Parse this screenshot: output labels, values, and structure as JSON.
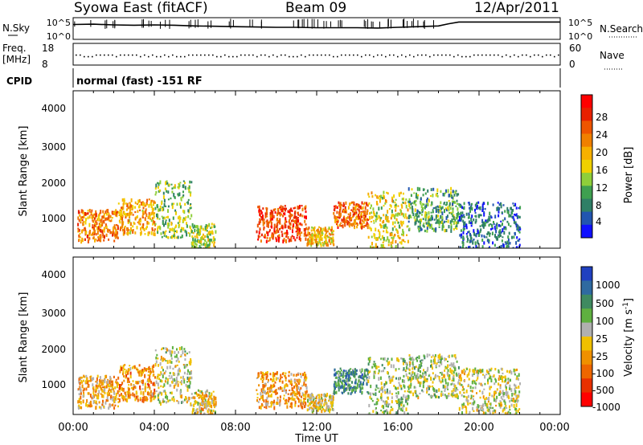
{
  "header": {
    "station": "Syowa East (fitACF)",
    "beam": "Beam 09",
    "date": "12/Apr/2011"
  },
  "noise_panel": {
    "left_label": "N.Sky",
    "right_label": "N.Search",
    "left_ticks": [
      "10^5",
      "10^0"
    ],
    "right_ticks": [
      "10^5",
      "10^0"
    ],
    "sky_profile": [
      [
        0,
        4.2
      ],
      [
        1,
        4.3
      ],
      [
        2,
        4.1
      ],
      [
        3,
        4.0
      ],
      [
        4,
        4.1
      ],
      [
        5,
        4.0
      ],
      [
        6,
        3.8
      ],
      [
        7,
        3.7
      ],
      [
        8,
        3.6
      ],
      [
        9,
        3.5
      ],
      [
        10,
        3.4
      ],
      [
        11,
        3.4
      ],
      [
        12,
        3.3
      ],
      [
        13,
        3.3
      ],
      [
        14,
        3.3
      ],
      [
        15,
        3.2
      ],
      [
        16,
        3.4
      ],
      [
        17,
        3.6
      ],
      [
        18,
        3.8
      ],
      [
        18.5,
        4.4
      ],
      [
        19,
        4.9
      ],
      [
        20,
        4.9
      ],
      [
        21,
        4.9
      ],
      [
        22,
        4.9
      ],
      [
        23,
        4.9
      ],
      [
        24,
        4.9
      ]
    ]
  },
  "freq_panel": {
    "left_label": "Freq.",
    "left_unit": "[MHz]",
    "right_label": "Nave",
    "left_ticks": [
      "18",
      "8"
    ],
    "right_ticks": [
      "60",
      "0"
    ],
    "freq_level": 12.9
  },
  "cpid_panel": {
    "label": "CPID",
    "text": "normal (fast) -151 RF"
  },
  "power_panel": {
    "ylabel": "Slant Range [km]",
    "yticks": [
      "4000",
      "3000",
      "2000",
      "1000"
    ],
    "colorbar_label": "Power [dB]",
    "colorbar_ticks": [
      "28",
      "24",
      "20",
      "16",
      "12",
      "8",
      "4"
    ],
    "colors": [
      "#1010ff",
      "#2255b0",
      "#2f7f66",
      "#3fa050",
      "#8fcf3a",
      "#f0d000",
      "#f7b000",
      "#f08000",
      "#ee5500",
      "#e82000",
      "#ff0000"
    ]
  },
  "velocity_panel": {
    "ylabel": "Slant Range [km]",
    "yticks": [
      "4000",
      "3000",
      "2000",
      "1000"
    ],
    "colorbar_label": "Velocity [m s",
    "colorbar_label_sup": "-1",
    "colorbar_label_end": "]",
    "colorbar_ticks": [
      "1000",
      "500",
      "100",
      "25",
      "-25",
      "-100",
      "-500",
      "-1000"
    ],
    "colors": [
      "#2040c0",
      "#2f6aa0",
      "#3f8a60",
      "#5fb040",
      "#b0b0b0",
      "#f0c000",
      "#f09000",
      "#ee6600",
      "#e83000",
      "#ff0000"
    ]
  },
  "time_axis": {
    "label": "Time UT",
    "ticks": [
      "00:00",
      "04:00",
      "08:00",
      "12:00",
      "16:00",
      "20:00",
      "00:00"
    ]
  },
  "chart_data": {
    "type": "heatmap",
    "title": "Syowa East (fitACF)",
    "subtitle": "Beam 09",
    "date": "12/Apr/2011",
    "xlabel": "Time UT",
    "ylabel": "Slant Range [km]",
    "xlim": [
      0,
      24
    ],
    "ylim": [
      180,
      4600
    ],
    "power_scale": [
      0,
      32
    ],
    "velocity_scale": [
      -1200,
      1200
    ],
    "scatter_regions": [
      {
        "t0": 0.2,
        "t1": 2.2,
        "r0": 400,
        "r1": 1300,
        "power": 22,
        "velocity": -200
      },
      {
        "t0": 2.2,
        "t1": 4.0,
        "r0": 600,
        "r1": 1600,
        "power": 20,
        "velocity": -400
      },
      {
        "t0": 4.0,
        "t1": 5.8,
        "r0": 500,
        "r1": 2100,
        "power": 12,
        "velocity": 100
      },
      {
        "t0": 5.8,
        "t1": 7.0,
        "r0": 200,
        "r1": 900,
        "power": 14,
        "velocity": -100
      },
      {
        "t0": 9.0,
        "t1": 11.5,
        "r0": 400,
        "r1": 1400,
        "power": 26,
        "velocity": -300
      },
      {
        "t0": 11.5,
        "t1": 12.8,
        "r0": 300,
        "r1": 800,
        "power": 18,
        "velocity": 0
      },
      {
        "t0": 12.8,
        "t1": 14.5,
        "r0": 800,
        "r1": 1500,
        "power": 24,
        "velocity": 600
      },
      {
        "t0": 14.5,
        "t1": 16.5,
        "r0": 200,
        "r1": 1800,
        "power": 16,
        "velocity": 200
      },
      {
        "t0": 16.5,
        "t1": 19.0,
        "r0": 700,
        "r1": 1900,
        "power": 10,
        "velocity": 150
      },
      {
        "t0": 19.0,
        "t1": 22.0,
        "r0": 200,
        "r1": 1500,
        "power": 6,
        "velocity": 50
      }
    ]
  }
}
